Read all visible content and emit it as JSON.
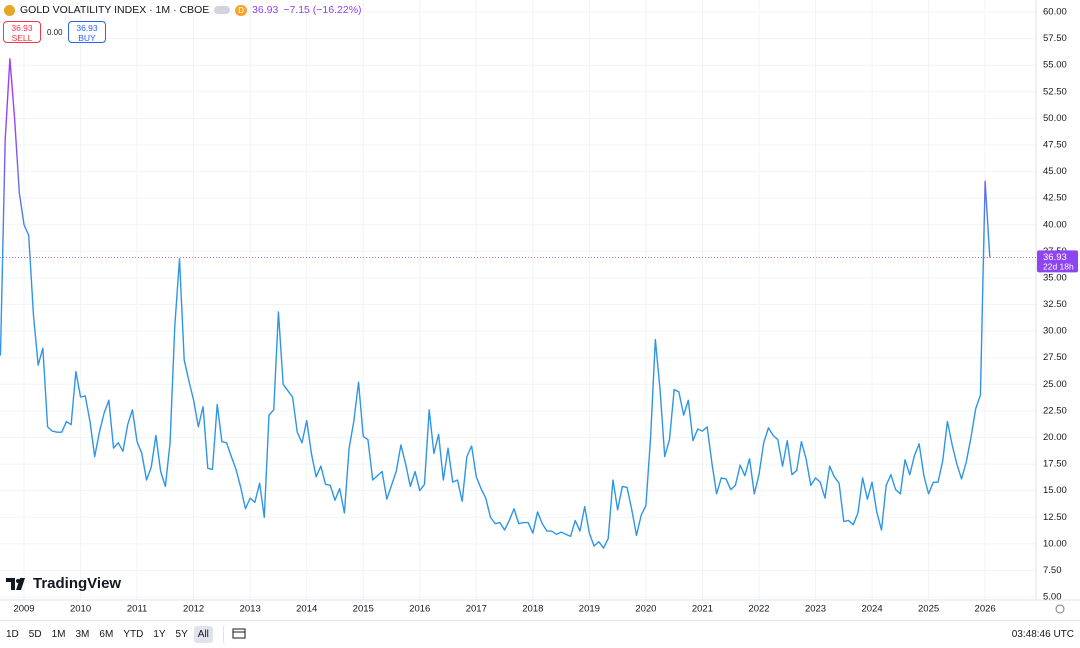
{
  "header": {
    "title": "GOLD VOLATILITY INDEX · 1M · CBOE",
    "badge": "D",
    "last": "36.93",
    "change": "−7.15 (−16.22%)",
    "sell_price": "36.93",
    "sell_label": "SELL",
    "spread": "0.00",
    "buy_price": "36.93",
    "buy_label": "BUY"
  },
  "logo": "TradingView",
  "toolbar": {
    "ranges": [
      "1D",
      "5D",
      "1M",
      "3M",
      "6M",
      "YTD",
      "1Y",
      "5Y",
      "All"
    ],
    "active": "All",
    "clock": "03:48:46 UTC"
  },
  "chart_data": {
    "type": "line",
    "grid": true,
    "x": [
      2008.583,
      2008.667,
      2008.75,
      2008.833,
      2008.917,
      2009,
      2009.083,
      2009.167,
      2009.25,
      2009.333,
      2009.417,
      2009.5,
      2009.583,
      2009.667,
      2009.75,
      2009.833,
      2009.917,
      2010,
      2010.083,
      2010.167,
      2010.25,
      2010.333,
      2010.417,
      2010.5,
      2010.583,
      2010.667,
      2010.75,
      2010.833,
      2010.917,
      2011,
      2011.083,
      2011.167,
      2011.25,
      2011.333,
      2011.417,
      2011.5,
      2011.583,
      2011.667,
      2011.75,
      2011.833,
      2011.917,
      2012,
      2012.083,
      2012.167,
      2012.25,
      2012.333,
      2012.417,
      2012.5,
      2012.583,
      2012.667,
      2012.75,
      2012.833,
      2012.917,
      2013,
      2013.083,
      2013.167,
      2013.25,
      2013.333,
      2013.417,
      2013.5,
      2013.583,
      2013.667,
      2013.75,
      2013.833,
      2013.917,
      2014,
      2014.083,
      2014.167,
      2014.25,
      2014.333,
      2014.417,
      2014.5,
      2014.583,
      2014.667,
      2014.75,
      2014.833,
      2014.917,
      2015,
      2015.083,
      2015.167,
      2015.25,
      2015.333,
      2015.417,
      2015.5,
      2015.583,
      2015.667,
      2015.75,
      2015.833,
      2015.917,
      2016,
      2016.083,
      2016.167,
      2016.25,
      2016.333,
      2016.417,
      2016.5,
      2016.583,
      2016.667,
      2016.75,
      2016.833,
      2016.917,
      2017,
      2017.083,
      2017.167,
      2017.25,
      2017.333,
      2017.417,
      2017.5,
      2017.583,
      2017.667,
      2017.75,
      2017.833,
      2017.917,
      2018,
      2018.083,
      2018.167,
      2018.25,
      2018.333,
      2018.417,
      2018.5,
      2018.583,
      2018.667,
      2018.75,
      2018.833,
      2018.917,
      2019,
      2019.083,
      2019.167,
      2019.25,
      2019.333,
      2019.417,
      2019.5,
      2019.583,
      2019.667,
      2019.75,
      2019.833,
      2019.917,
      2020,
      2020.083,
      2020.167,
      2020.25,
      2020.333,
      2020.417,
      2020.5,
      2020.583,
      2020.667,
      2020.75,
      2020.833,
      2020.917,
      2021,
      2021.083,
      2021.167,
      2021.25,
      2021.333,
      2021.417,
      2021.5,
      2021.583,
      2021.667,
      2021.75,
      2021.833,
      2021.917,
      2022,
      2022.083,
      2022.167,
      2022.25,
      2022.333,
      2022.417,
      2022.5,
      2022.583,
      2022.667,
      2022.75,
      2022.833,
      2022.917,
      2023,
      2023.083,
      2023.167,
      2023.25,
      2023.333,
      2023.417,
      2023.5,
      2023.583,
      2023.667,
      2023.75,
      2023.833,
      2023.917,
      2024,
      2024.083,
      2024.167,
      2024.25,
      2024.333,
      2024.417,
      2024.5,
      2024.583,
      2024.667,
      2024.75,
      2024.833,
      2024.917,
      2025,
      2025.083,
      2025.167,
      2025.25,
      2025.333,
      2025.417,
      2025.5,
      2025.583,
      2025.667,
      2025.75,
      2025.833,
      2025.917,
      2026,
      2026.083
    ],
    "series": [
      {
        "color": "#2f95e6",
        "color_high": "#a13df5",
        "values": [
          27.7,
          48,
          55.6,
          50,
          43,
          40,
          39,
          31.5,
          26.8,
          28.4,
          21,
          20.6,
          20.5,
          20.5,
          21.5,
          21.2,
          26.2,
          23.8,
          23.9,
          21.5,
          18.2,
          20.5,
          22.3,
          23.5,
          19,
          19.5,
          18.7,
          21.2,
          22.6,
          19.6,
          18.5,
          16,
          17.2,
          20.2,
          16.8,
          15.4,
          19.5,
          30.5,
          36.8,
          27.3,
          25.3,
          23.5,
          21,
          22.9,
          17.1,
          17,
          23.1,
          19.6,
          19.5,
          18.2,
          17,
          15.3,
          13.3,
          14.3,
          13.9,
          15.7,
          12.5,
          22.1,
          22.6,
          31.8,
          25,
          24.4,
          23.8,
          20.5,
          19.5,
          21.6,
          18.5,
          16.3,
          17.3,
          15.6,
          15.5,
          14.1,
          15.2,
          12.9,
          19,
          21.5,
          25.2,
          20.1,
          19.8,
          16,
          16.4,
          16.8,
          14.2,
          15.5,
          16.8,
          19.3,
          17.5,
          15.4,
          16.8,
          15,
          15.6,
          22.6,
          18.5,
          20.3,
          16,
          19,
          15.8,
          16,
          14,
          18.2,
          19.2,
          16.3,
          15.2,
          14.3,
          12.5,
          11.9,
          12,
          11.3,
          12.2,
          13.3,
          11.9,
          12,
          12,
          11,
          13,
          11.9,
          11.2,
          11.2,
          10.9,
          11.1,
          10.9,
          10.7,
          12.2,
          11.2,
          13.5,
          11,
          9.8,
          10.2,
          9.6,
          10.5,
          16,
          13.2,
          15.4,
          15.3,
          13.2,
          10.8,
          12.7,
          13.6,
          20,
          29.2,
          24.5,
          18.2,
          19.8,
          24.5,
          24.3,
          22.1,
          23.5,
          19.7,
          20.8,
          20.6,
          21,
          17.6,
          14.7,
          16.2,
          16.1,
          15.1,
          15.5,
          17.4,
          16.4,
          18,
          14.7,
          16.5,
          19.5,
          20.9,
          20.2,
          19.8,
          17.3,
          19.7,
          16.5,
          16.9,
          19.6,
          18,
          15.5,
          16.2,
          15.8,
          14.3,
          17.3,
          16.3,
          15.7,
          12.1,
          12.2,
          11.8,
          12.9,
          16.2,
          14.2,
          15.8,
          13,
          11.3,
          15.5,
          16.5,
          15.1,
          14.7,
          17.9,
          16.5,
          18.3,
          19.4,
          16.4,
          14.7,
          15.8,
          15.8,
          17.8,
          21.5,
          19.3,
          17.5,
          16.1,
          17.7,
          20,
          22.7,
          24,
          44.1,
          36.93
        ]
      }
    ],
    "last_price": 36.93,
    "countdown": "22d 18h",
    "last_color": "#8e44f0",
    "xlim": [
      2008.575,
      2026.9
    ],
    "xticks": [
      2009,
      2010,
      2011,
      2012,
      2013,
      2014,
      2015,
      2016,
      2017,
      2018,
      2019,
      2020,
      2021,
      2022,
      2023,
      2024,
      2025,
      2026
    ],
    "ylim": [
      4.72,
      61.13
    ],
    "yticks": [
      {
        "value": 5,
        "label": "5.00"
      },
      {
        "value": 7.5,
        "label": "7.50"
      },
      {
        "value": 10,
        "label": "10.00"
      },
      {
        "value": 12.5,
        "label": "12.50"
      },
      {
        "value": 15,
        "label": "15.00"
      },
      {
        "value": 17.5,
        "label": "17.50"
      },
      {
        "value": 20,
        "label": "20.00"
      },
      {
        "value": 22.5,
        "label": "22.50"
      },
      {
        "value": 25,
        "label": "25.00"
      },
      {
        "value": 27.5,
        "label": "27.50"
      },
      {
        "value": 30,
        "label": "30.00"
      },
      {
        "value": 32.5,
        "label": "32.50"
      },
      {
        "value": 35,
        "label": "35.00"
      },
      {
        "value": 37.5,
        "label": "37.50"
      },
      {
        "value": 40,
        "label": "40.00"
      },
      {
        "value": 42.5,
        "label": "42.50"
      },
      {
        "value": 45,
        "label": "45.00"
      },
      {
        "value": 47.5,
        "label": "47.50"
      },
      {
        "value": 50,
        "label": "50.00"
      },
      {
        "value": 52.5,
        "label": "52.50"
      },
      {
        "value": 55,
        "label": "55.00"
      },
      {
        "value": 57.5,
        "label": "57.50"
      },
      {
        "value": 60,
        "label": "60.00"
      }
    ]
  }
}
